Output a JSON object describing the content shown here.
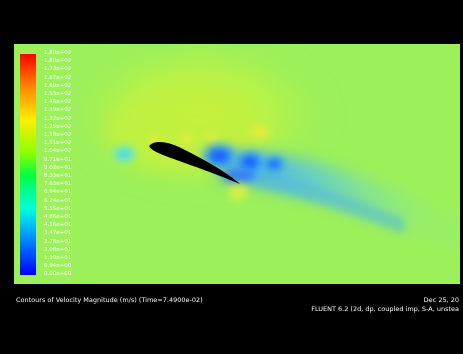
{
  "colorbar": {
    "labels": [
      "1.80e+02",
      "1.80e+02",
      "1.73e+02",
      "1.67e+02",
      "1.60e+02",
      "1.53e+02",
      "1.46e+02",
      "1.39e+02",
      "1.32e+02",
      "1.25e+02",
      "1.18e+02",
      "1.11e+02",
      "1.04e+02",
      "9.71e+01",
      "9.02e+01",
      "8.33e+01",
      "7.63e+01",
      "6.94e+01",
      "6.24e+01",
      "5.55e+01",
      "4.86e+01",
      "4.16e+01",
      "3.47e+01",
      "2.78e+01",
      "2.08e+01",
      "1.39e+01",
      "6.94e+00",
      "0.00e+00"
    ],
    "colors": {
      "max": "#ff0000",
      "high": "#ff9900",
      "upper_mid": "#ffff00",
      "mid": "#00ff00",
      "lower_mid": "#00ffff",
      "low": "#0000ff"
    }
  },
  "field": {
    "background_color": "#9cf05a",
    "airfoil_color": "#000000"
  },
  "caption": {
    "title": "Contours of Velocity Magnitude (m/s)  (Time=7.4900e-02)",
    "date": "Dec 25, 20",
    "solver": "FLUENT 6.2 (2d, dp, coupled imp, S-A, unstea"
  }
}
